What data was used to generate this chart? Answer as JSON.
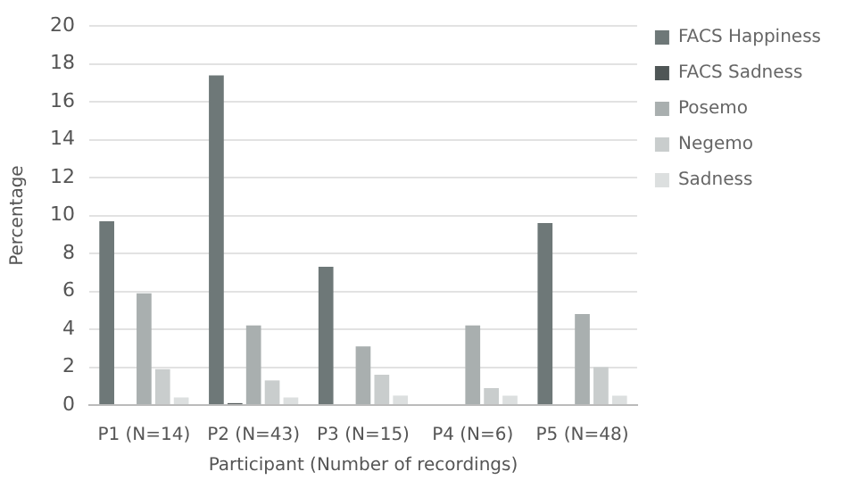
{
  "chart_data": {
    "type": "bar",
    "xlabel": "Participant (Number of recordings)",
    "ylabel": "Percentage",
    "categories": [
      "P1 (N=14)",
      "P2 (N=43)",
      "P3 (N=15)",
      "P4 (N=6)",
      "P5 (N=48)"
    ],
    "series": [
      {
        "name": "FACS Happiness",
        "color": "#6e7878",
        "values": [
          9.7,
          17.4,
          7.3,
          0,
          9.6
        ]
      },
      {
        "name": "FACS Sadness",
        "color": "#4f5656",
        "values": [
          0,
          0.1,
          0,
          0,
          0
        ]
      },
      {
        "name": "Posemo",
        "color": "#a9afaf",
        "values": [
          5.9,
          4.2,
          3.1,
          4.2,
          4.8
        ]
      },
      {
        "name": "Negemo",
        "color": "#c9cdcd",
        "values": [
          1.9,
          1.3,
          1.6,
          0.9,
          2.0
        ]
      },
      {
        "name": "Sadness",
        "color": "#dcdfdf",
        "values": [
          0.4,
          0.4,
          0.5,
          0.5,
          0.5
        ]
      }
    ],
    "ylim": [
      0,
      20
    ],
    "yticks": [
      0,
      2,
      4,
      6,
      8,
      10,
      12,
      14,
      16,
      18,
      20
    ],
    "grid": "y",
    "legend": "right"
  }
}
